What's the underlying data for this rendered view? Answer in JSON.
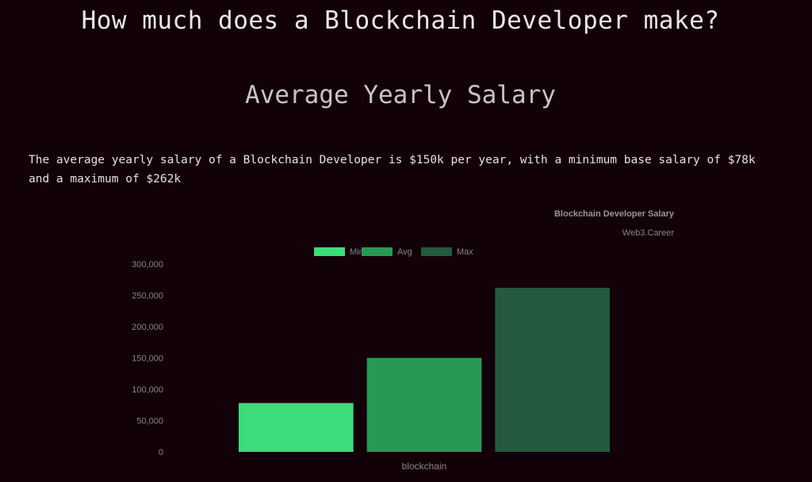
{
  "page": {
    "title": "How much does a Blockchain Developer make?",
    "section_title": "Average Yearly Salary",
    "summary": "The average yearly salary of a Blockchain Developer is $150k per year, with a minimum base salary of $78k and a maximum of $262k"
  },
  "chart_data": {
    "type": "bar",
    "title": "Blockchain Developer Salary",
    "subtitle": "Web3.Career",
    "categories": [
      "blockchain"
    ],
    "series": [
      {
        "name": "Min",
        "values": [
          78000
        ],
        "color": "#3ddc7a"
      },
      {
        "name": "Avg",
        "values": [
          150000
        ],
        "color": "#289955"
      },
      {
        "name": "Max",
        "values": [
          262000
        ],
        "color": "#235a3e"
      }
    ],
    "ylim": [
      0,
      300000
    ],
    "yticks": [
      "0",
      "50,000",
      "100,000",
      "150,000",
      "200,000",
      "250,000",
      "300,000"
    ],
    "ytick_values": [
      0,
      50000,
      100000,
      150000,
      200000,
      250000,
      300000
    ],
    "legend_position": "top",
    "grid": false
  },
  "colors": {
    "background": "#13010a",
    "axis_text": "#8a8385",
    "title_text": "#9a9395"
  }
}
